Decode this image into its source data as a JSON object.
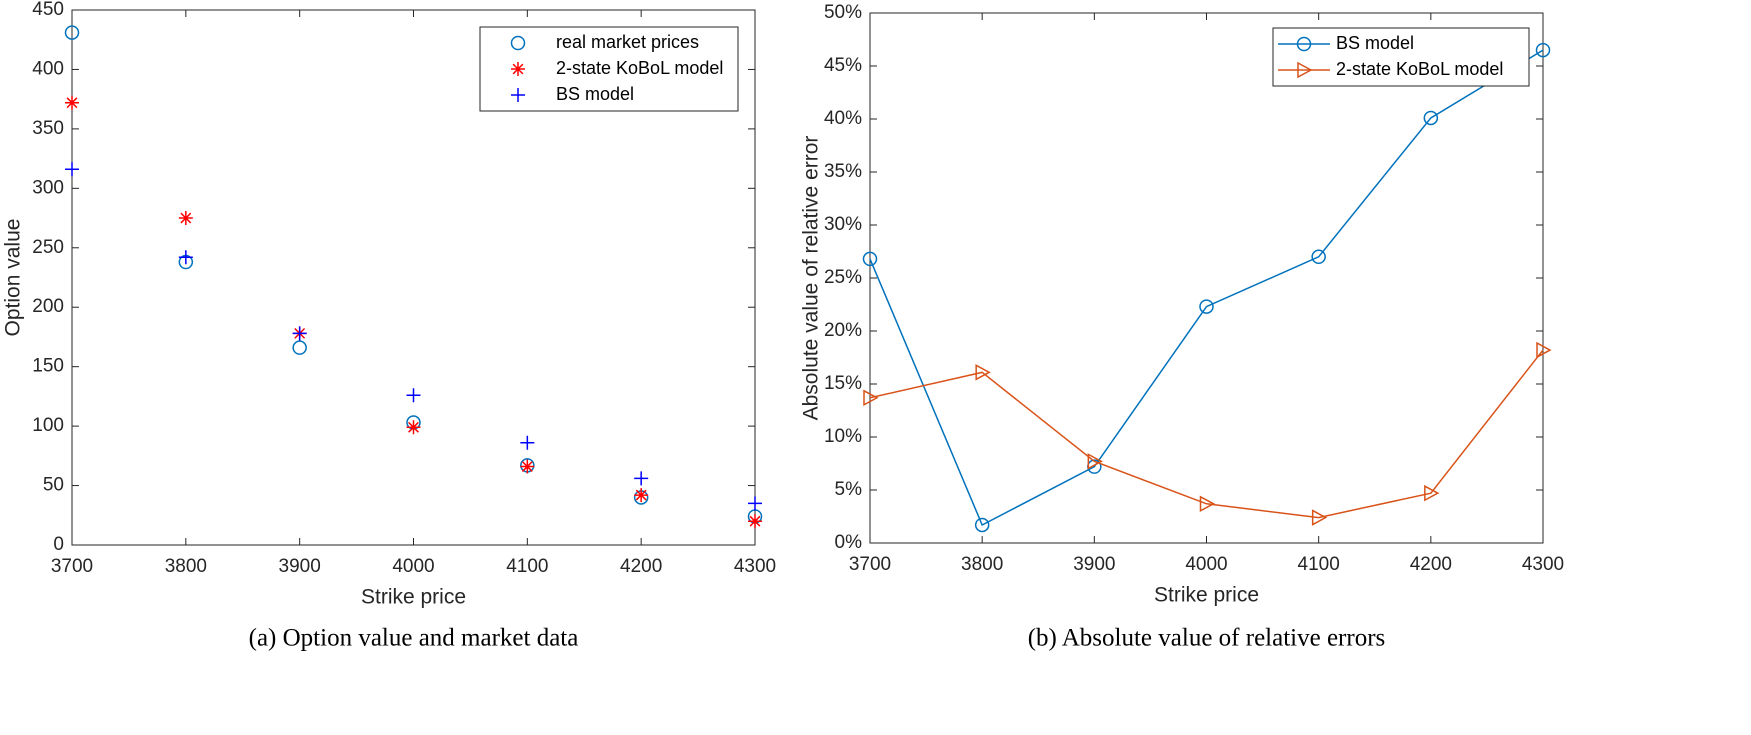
{
  "chart_data": [
    {
      "type": "scatter",
      "caption": "(a) Option value and market data",
      "xlabel": "Strike price",
      "ylabel": "Option value",
      "x": [
        3700,
        3800,
        3900,
        4000,
        4100,
        4200,
        4300
      ],
      "xlim": [
        3700,
        4300
      ],
      "xticks": [
        3700,
        3800,
        3900,
        4000,
        4100,
        4200,
        4300
      ],
      "ylim": [
        0,
        450
      ],
      "yticks": [
        0,
        50,
        100,
        150,
        200,
        250,
        300,
        350,
        400,
        450
      ],
      "legend": "top-right",
      "series": [
        {
          "name": "real market prices",
          "color": "#0072bd",
          "marker": "circle",
          "values": [
            431,
            238,
            166,
            103,
            67,
            40,
            24
          ]
        },
        {
          "name": "2-state KoBoL model",
          "color": "#ff0000",
          "marker": "asterisk",
          "values": [
            372,
            275,
            178,
            99,
            66,
            42,
            20
          ]
        },
        {
          "name": "BS model",
          "color": "#0000ff",
          "marker": "plus",
          "values": [
            316,
            242,
            178,
            126,
            86,
            56,
            35
          ]
        }
      ]
    },
    {
      "type": "line",
      "caption": "(b) Absolute value of relative errors",
      "xlabel": "Strike price",
      "ylabel": "Absolute value of relative error",
      "x": [
        3700,
        3800,
        3900,
        4000,
        4100,
        4200,
        4300
      ],
      "xlim": [
        3700,
        4300
      ],
      "xticks": [
        3700,
        3800,
        3900,
        4000,
        4100,
        4200,
        4300
      ],
      "ylim": [
        0,
        50
      ],
      "yticks": [
        {
          "value": 0,
          "label": "0%"
        },
        {
          "value": 5,
          "label": "5%"
        },
        {
          "value": 10,
          "label": "10%"
        },
        {
          "value": 15,
          "label": "15%"
        },
        {
          "value": 20,
          "label": "20%"
        },
        {
          "value": 25,
          "label": "25%"
        },
        {
          "value": 30,
          "label": "30%"
        },
        {
          "value": 35,
          "label": "35%"
        },
        {
          "value": 40,
          "label": "40%"
        },
        {
          "value": 45,
          "label": "45%"
        },
        {
          "value": 50,
          "label": "50%"
        }
      ],
      "legend": "top-right",
      "series": [
        {
          "name": "BS model",
          "color": "#0072bd",
          "marker": "circle",
          "values": [
            26.8,
            1.7,
            7.2,
            22.3,
            27.0,
            40.1,
            46.5
          ]
        },
        {
          "name": "2-state KoBoL model",
          "color": "#d95319",
          "marker": "triangle-right",
          "values": [
            13.7,
            16.1,
            7.7,
            3.7,
            2.4,
            4.7,
            18.2
          ]
        }
      ]
    }
  ]
}
